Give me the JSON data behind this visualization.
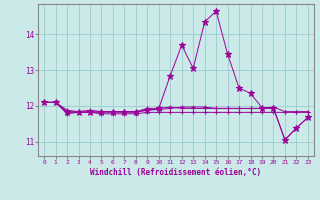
{
  "xlabel": "Windchill (Refroidissement éolien,°C)",
  "x_ticks": [
    0,
    1,
    2,
    3,
    4,
    5,
    6,
    7,
    8,
    9,
    10,
    11,
    12,
    13,
    14,
    15,
    16,
    17,
    18,
    19,
    20,
    21,
    22,
    23
  ],
  "ylim": [
    10.6,
    14.85
  ],
  "yticks": [
    11,
    12,
    13,
    14
  ],
  "bg_color": "#cce9e9",
  "line_color": "#990099",
  "grid_color": "#99cccc",
  "series": [
    [
      12.1,
      12.1,
      11.78,
      11.82,
      11.82,
      11.78,
      11.78,
      11.78,
      11.78,
      11.82,
      11.82,
      11.82,
      11.82,
      11.82,
      11.82,
      11.82,
      11.82,
      11.82,
      11.82,
      11.82,
      11.82,
      11.82,
      11.82,
      11.82
    ],
    [
      12.1,
      12.1,
      11.88,
      11.84,
      11.88,
      11.84,
      11.84,
      11.84,
      11.84,
      11.93,
      11.93,
      11.97,
      11.93,
      11.93,
      11.93,
      11.93,
      11.93,
      11.93,
      11.93,
      11.93,
      11.97,
      11.84,
      11.84,
      11.84
    ],
    [
      12.1,
      12.1,
      11.83,
      11.83,
      11.83,
      11.83,
      11.83,
      11.83,
      11.83,
      11.88,
      11.9,
      11.93,
      11.97,
      11.97,
      11.97,
      11.93,
      11.93,
      11.93,
      11.93,
      11.93,
      11.93,
      11.05,
      11.38,
      11.68
    ],
    [
      12.1,
      12.1,
      11.83,
      11.83,
      11.83,
      11.83,
      11.83,
      11.83,
      11.83,
      11.88,
      11.93,
      12.85,
      13.7,
      13.05,
      14.35,
      14.65,
      13.45,
      12.5,
      12.35,
      11.95,
      11.95,
      11.05,
      11.38,
      11.68
    ]
  ],
  "spine_color": "#888888"
}
